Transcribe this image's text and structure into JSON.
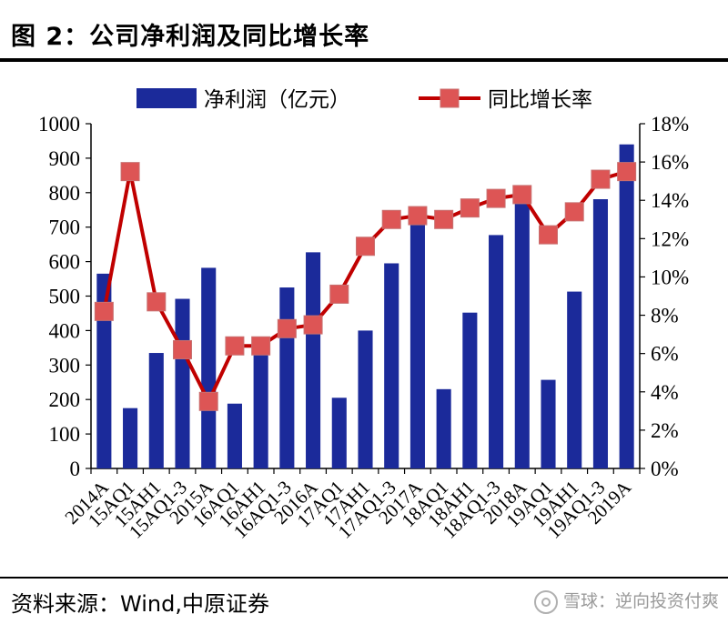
{
  "title": "图 2：公司净利润及同比增长率",
  "source": "资料来源：Wind,中原证券",
  "watermark": "雪球：逆向投资付爽",
  "colors": {
    "bar": "#1b2a9a",
    "line": "#c00000",
    "marker": "#dd5555"
  },
  "chart_data": {
    "type": "bar",
    "title": "",
    "xlabel": "",
    "ylabel": "",
    "categories": [
      "2014A",
      "15AQ1",
      "15AH1",
      "15AQ1-3",
      "2015A",
      "16AQ1",
      "16AH1",
      "16AQ1-3",
      "2016A",
      "17AQ1",
      "17AH1",
      "17AQ1-3",
      "2017A",
      "18AQ1",
      "18AH1",
      "18AQ1-3",
      "2018A",
      "19AQ1",
      "19AH1",
      "19AQ1-3",
      "2019A"
    ],
    "series": [
      {
        "name": "净利润（亿元）",
        "type": "bar",
        "axis": "left",
        "values": [
          565,
          175,
          335,
          492,
          582,
          188,
          358,
          525,
          627,
          205,
          400,
          595,
          707,
          230,
          452,
          677,
          769,
          257,
          513,
          781,
          940
        ]
      },
      {
        "name": "同比增长率",
        "type": "line",
        "axis": "right",
        "unit": "%",
        "values": [
          8.2,
          15.5,
          8.7,
          6.2,
          3.5,
          6.4,
          6.4,
          7.3,
          7.5,
          9.1,
          11.6,
          13.0,
          13.2,
          13.0,
          13.6,
          14.1,
          14.3,
          12.2,
          13.4,
          15.1,
          15.5
        ]
      }
    ],
    "ylim": [
      0,
      1000
    ],
    "yticks": [
      "0",
      "100",
      "200",
      "300",
      "400",
      "500",
      "600",
      "700",
      "800",
      "900",
      "1000"
    ],
    "y2lim": [
      0,
      18
    ],
    "y2ticks": [
      "0%",
      "2%",
      "4%",
      "6%",
      "8%",
      "10%",
      "12%",
      "14%",
      "16%",
      "18%"
    ],
    "legend_position": "top",
    "grid": false
  }
}
